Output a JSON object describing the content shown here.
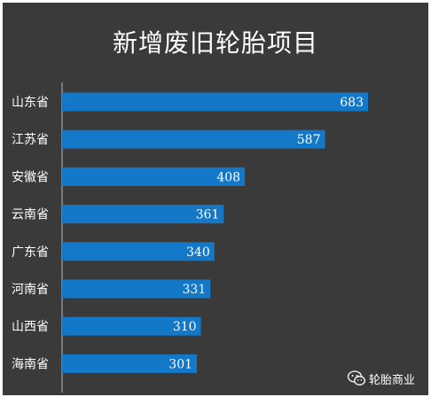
{
  "chart_data": {
    "type": "bar",
    "orientation": "horizontal",
    "title": "新增废旧轮胎项目",
    "categories": [
      "山东省",
      "江苏省",
      "安徽省",
      "云南省",
      "广东省",
      "河南省",
      "山西省",
      "海南省"
    ],
    "values": [
      683,
      587,
      408,
      361,
      340,
      331,
      310,
      301
    ],
    "xlabel": "",
    "ylabel": "",
    "xlim": [
      0,
      700
    ],
    "grid": false,
    "legend": "none",
    "data_labels": "inside-end"
  },
  "colors": {
    "background": "#3a3a3a",
    "bar": "#1478c8",
    "text": "#ffffff",
    "axis": "#bbbbbb"
  },
  "watermark": {
    "icon": "wechat-icon",
    "text": "轮胎商业"
  }
}
